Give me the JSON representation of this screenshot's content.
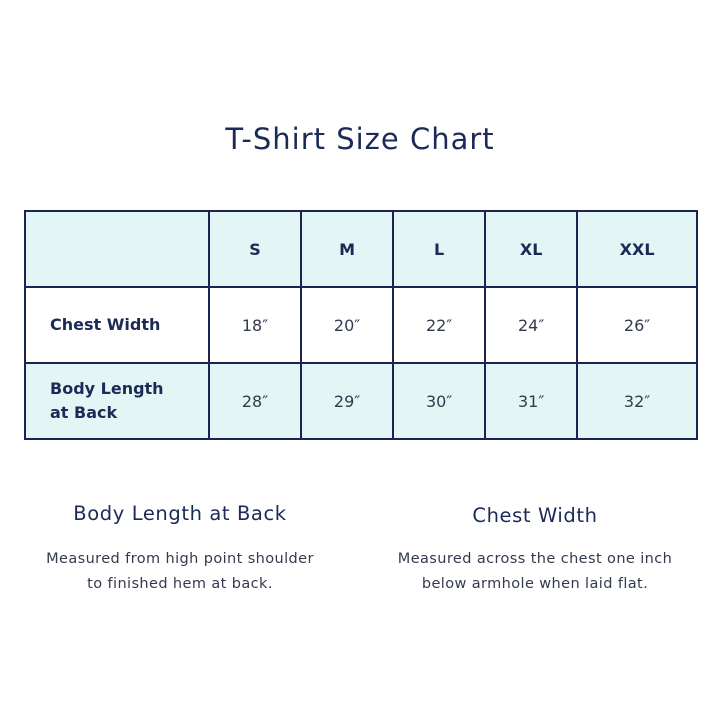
{
  "title": "T-Shirt Size Chart",
  "table": {
    "corner": "",
    "sizes": [
      "S",
      "M",
      "L",
      "XL",
      "XXL"
    ],
    "rows": [
      {
        "label": "Chest Width",
        "values": [
          "18″",
          "20″",
          "22″",
          "24″",
          "26″"
        ]
      },
      {
        "label_line1": "Body Length",
        "label_line2": "at Back",
        "values": [
          "28″",
          "29″",
          "30″",
          "31″",
          "32″"
        ]
      }
    ]
  },
  "notes": [
    {
      "heading": "Body Length at Back",
      "line1": "Measured from high point shoulder",
      "line2": "to finished hem at back."
    },
    {
      "heading": "Chest Width",
      "line1": "Measured across the chest one inch",
      "line2": "below armhole when laid flat."
    }
  ],
  "colors": {
    "navy": "#1c2a58",
    "teal_fill": "#e2f6f5"
  }
}
